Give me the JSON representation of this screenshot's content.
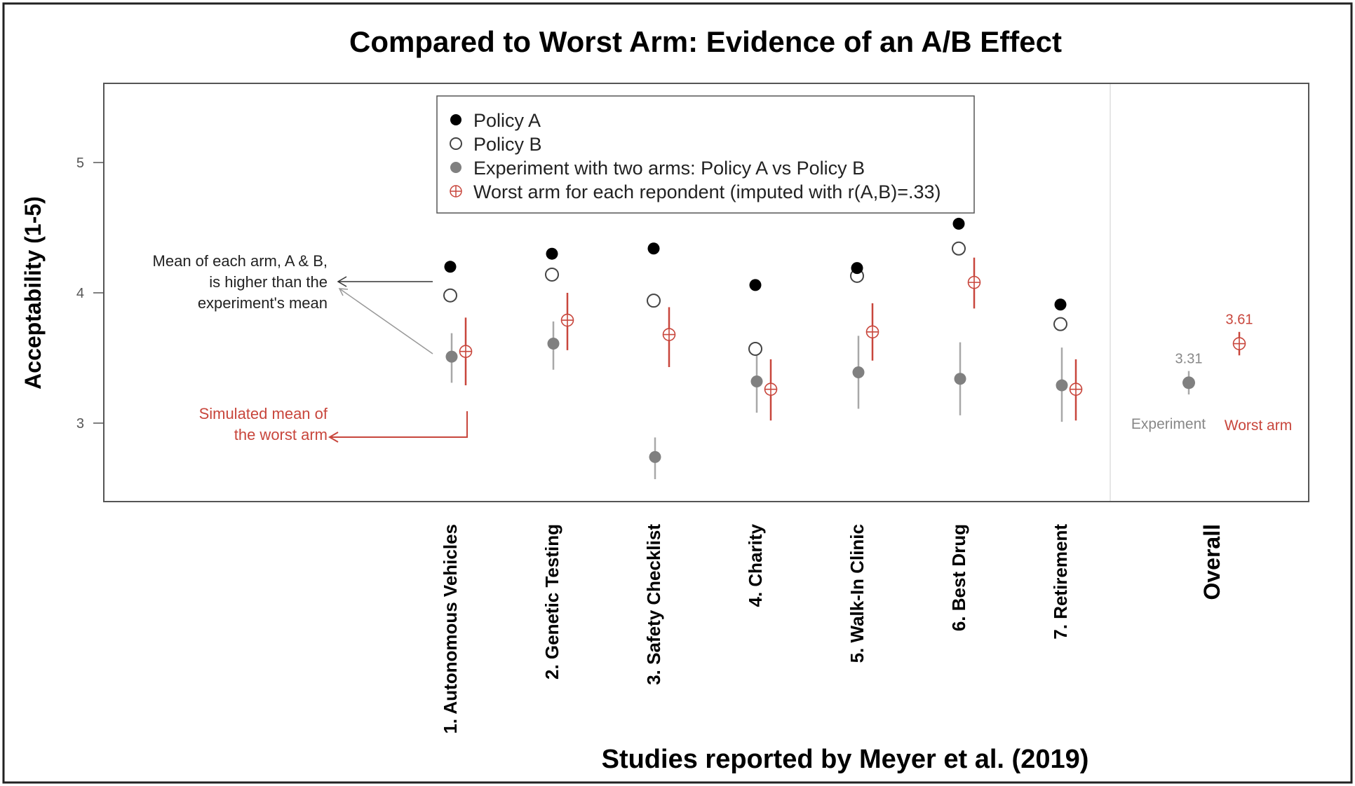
{
  "chart_data": {
    "type": "scatter",
    "title": "Compared to Worst Arm: Evidence of an A/B Effect",
    "xlabel": "Studies reported by Meyer et al. (2019)",
    "ylabel": "Acceptability (1-5)",
    "ylim": [
      2.4,
      5.6
    ],
    "yticks": [
      "3",
      "4",
      "5"
    ],
    "grid": false,
    "legend_position": "top-center",
    "categories": [
      "1. Autonomous Vehicles",
      "2. Genetic Testing",
      "3. Safety Checklist",
      "4. Charity",
      "5. Walk-In Clinic",
      "6. Best Drug",
      "7. Retirement"
    ],
    "overall_label": "Overall",
    "series": [
      {
        "name": "Policy A",
        "values": [
          4.2,
          4.3,
          4.34,
          4.06,
          4.19,
          4.53,
          3.91
        ]
      },
      {
        "name": "Policy B",
        "values": [
          3.98,
          4.14,
          3.94,
          3.57,
          4.13,
          4.34,
          3.76
        ]
      },
      {
        "name": "Experiment with two arms: Policy A vs Policy B",
        "values": [
          3.51,
          3.61,
          2.74,
          3.32,
          3.39,
          3.34,
          3.29
        ],
        "ci_low": [
          3.31,
          3.41,
          2.57,
          3.08,
          3.11,
          3.06,
          3.01
        ],
        "ci_high": [
          3.69,
          3.78,
          2.89,
          3.56,
          3.67,
          3.62,
          3.58
        ]
      },
      {
        "name": "Worst arm for each repondent (imputed with r(A,B)=.33)",
        "values": [
          3.55,
          3.79,
          3.68,
          3.26,
          3.7,
          4.08,
          3.26
        ],
        "ci_low": [
          3.29,
          3.56,
          3.43,
          3.02,
          3.48,
          3.88,
          3.02
        ],
        "ci_high": [
          3.81,
          4.0,
          3.89,
          3.49,
          3.92,
          4.27,
          3.49
        ]
      }
    ],
    "overall": {
      "experiment": {
        "value": 3.31,
        "ci_low": 3.22,
        "ci_high": 3.4,
        "value_label": "3.31",
        "label": "Experiment"
      },
      "worst_arm": {
        "value": 3.61,
        "ci_low": 3.52,
        "ci_high": 3.7,
        "value_label": "3.61",
        "label": "Worst arm"
      }
    },
    "annotations": {
      "mean_note": [
        "Mean of each arm, A & B,",
        "is higher than the",
        "experiment's mean"
      ],
      "worst_note": [
        "Simulated mean of",
        "the worst arm"
      ]
    }
  },
  "colors": {
    "policy_a": "#000000",
    "policy_b": "#ffffff",
    "experiment": "#808080",
    "worst_arm": "#c8463c",
    "frame": "#555555"
  }
}
